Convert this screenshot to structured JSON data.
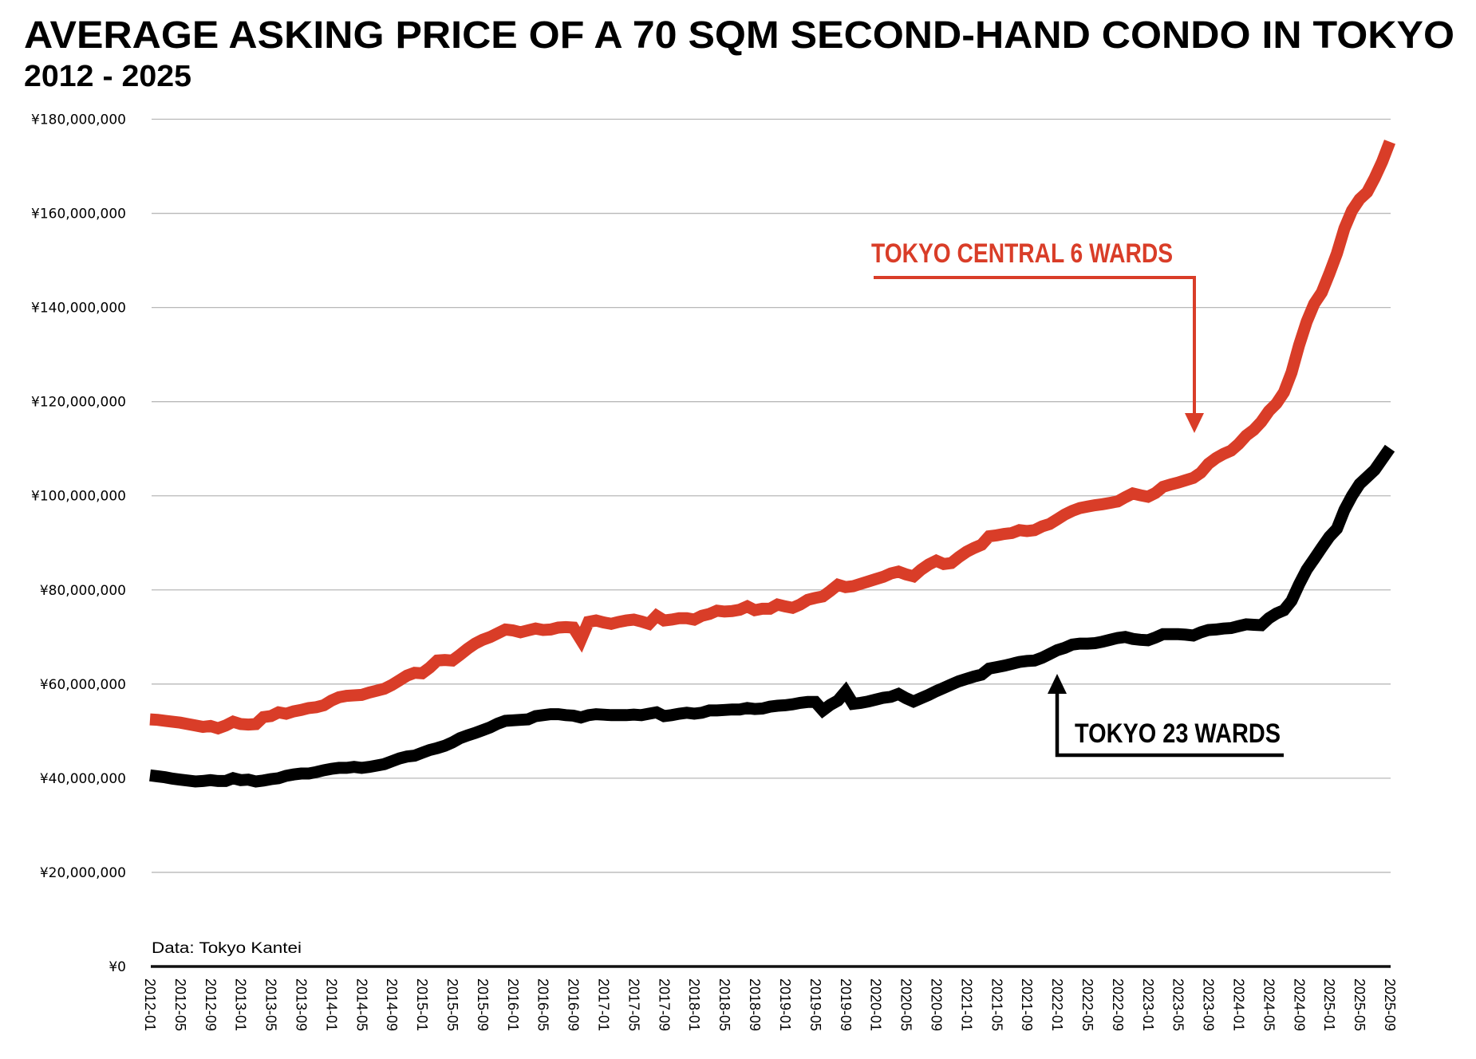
{
  "chart_data": {
    "type": "line",
    "title": "AVERAGE ASKING PRICE OF A 70 SQM SECOND-HAND CONDO IN TOKYO",
    "subtitle": "2012 - 2025",
    "source": "Data: Tokyo Kantei",
    "xlabel": "",
    "ylabel": "",
    "x_start": "2012-01",
    "x_end": "2025-09",
    "x_frequency": "monthly",
    "x_tick_labels": [
      "2012-01",
      "2012-05",
      "2012-09",
      "2013-01",
      "2013-05",
      "2013-09",
      "2014-01",
      "2014-05",
      "2014-09",
      "2015-01",
      "2015-05",
      "2015-09",
      "2016-01",
      "2016-05",
      "2016-09",
      "2017-01",
      "2017-05",
      "2017-09",
      "2018-01",
      "2018-05",
      "2018-09",
      "2019-01",
      "2019-05",
      "2019-09",
      "2020-01",
      "2020-05",
      "2020-09",
      "2021-01",
      "2021-05",
      "2021-09",
      "2022-01",
      "2022-05",
      "2022-09",
      "2023-01",
      "2023-05",
      "2023-09",
      "2024-01",
      "2024-05",
      "2024-09",
      "2025-01",
      "2025-05",
      "2025-09"
    ],
    "ylim": [
      0,
      180000000
    ],
    "y_tick_values": [
      0,
      20000000,
      40000000,
      60000000,
      80000000,
      100000000,
      120000000,
      140000000,
      160000000,
      180000000
    ],
    "y_tick_labels": [
      "¥0",
      "¥20,000,000",
      "¥40,000,000",
      "¥60,000,000",
      "¥80,000,000",
      "¥100,000,000",
      "¥120,000,000",
      "¥140,000,000",
      "¥160,000,000",
      "¥180,000,000"
    ],
    "grid": true,
    "legend": "none (direct line annotations)",
    "value_unit": "million yen",
    "series": [
      {
        "name": "TOKYO CENTRAL 6 WARDS",
        "color": "#D93D28",
        "values": [
          52.5,
          52.4,
          52.2,
          52.0,
          51.8,
          51.5,
          51.2,
          50.9,
          51.1,
          50.6,
          51.2,
          52.0,
          51.5,
          51.4,
          51.5,
          53.0,
          53.2,
          54.0,
          53.7,
          54.2,
          54.5,
          54.9,
          55.1,
          55.5,
          56.5,
          57.2,
          57.5,
          57.6,
          57.7,
          58.2,
          58.6,
          59.0,
          59.8,
          60.8,
          61.8,
          62.4,
          62.3,
          63.5,
          65.0,
          65.1,
          65.0,
          66.2,
          67.5,
          68.6,
          69.4,
          70.0,
          70.8,
          71.6,
          71.4,
          71.0,
          71.4,
          71.8,
          71.5,
          71.6,
          72.0,
          72.1,
          72.0,
          69.4,
          73.2,
          73.5,
          73.1,
          72.8,
          73.2,
          73.5,
          73.7,
          73.3,
          72.8,
          74.5,
          73.5,
          73.7,
          74.0,
          74.0,
          73.7,
          74.5,
          74.9,
          75.6,
          75.4,
          75.5,
          75.8,
          76.5,
          75.7,
          76.0,
          76.0,
          76.9,
          76.5,
          76.2,
          76.9,
          77.9,
          78.3,
          78.6,
          79.8,
          81.1,
          80.6,
          80.8,
          81.3,
          81.8,
          82.3,
          82.8,
          83.5,
          83.9,
          83.3,
          82.9,
          84.3,
          85.4,
          86.2,
          85.5,
          85.7,
          87.0,
          88.1,
          88.9,
          89.6,
          91.4,
          91.6,
          91.9,
          92.1,
          92.7,
          92.5,
          92.7,
          93.5,
          94.0,
          95.0,
          96.0,
          96.8,
          97.4,
          97.7,
          98.0,
          98.2,
          98.5,
          98.8,
          99.7,
          100.5,
          100.1,
          99.8,
          100.6,
          101.9,
          102.4,
          102.8,
          103.3,
          103.8,
          104.9,
          106.8,
          108.0,
          108.9,
          109.6,
          111.0,
          112.8,
          114.0,
          115.7,
          118.0,
          119.6,
          122.0,
          126.2,
          132.0,
          137.0,
          140.8,
          143.2,
          147.2,
          151.5,
          156.8,
          160.6,
          163.0,
          164.5,
          167.5,
          171.0,
          175.2
        ]
      },
      {
        "name": "TOKYO 23 WARDS",
        "color": "#000000",
        "values": [
          40.6,
          40.4,
          40.2,
          39.9,
          39.7,
          39.5,
          39.3,
          39.4,
          39.6,
          39.4,
          39.4,
          40.0,
          39.6,
          39.7,
          39.3,
          39.5,
          39.8,
          40.0,
          40.5,
          40.8,
          41.0,
          41.0,
          41.3,
          41.7,
          42.0,
          42.2,
          42.2,
          42.4,
          42.2,
          42.4,
          42.7,
          43.0,
          43.6,
          44.2,
          44.6,
          44.8,
          45.4,
          46.0,
          46.4,
          46.9,
          47.6,
          48.5,
          49.1,
          49.6,
          50.2,
          50.8,
          51.6,
          52.2,
          52.3,
          52.4,
          52.5,
          53.2,
          53.4,
          53.6,
          53.6,
          53.4,
          53.3,
          52.9,
          53.4,
          53.6,
          53.5,
          53.4,
          53.4,
          53.4,
          53.5,
          53.4,
          53.7,
          54.0,
          53.2,
          53.4,
          53.7,
          53.9,
          53.7,
          53.9,
          54.4,
          54.4,
          54.5,
          54.6,
          54.6,
          54.9,
          54.7,
          54.8,
          55.2,
          55.4,
          55.5,
          55.7,
          56.0,
          56.2,
          56.2,
          54.4,
          55.6,
          56.5,
          58.4,
          55.8,
          56.0,
          56.3,
          56.7,
          57.1,
          57.3,
          57.9,
          57.0,
          56.3,
          57.0,
          57.7,
          58.5,
          59.2,
          59.9,
          60.6,
          61.1,
          61.6,
          62.0,
          63.3,
          63.6,
          63.9,
          64.3,
          64.7,
          64.9,
          65.0,
          65.6,
          66.4,
          67.2,
          67.7,
          68.4,
          68.6,
          68.6,
          68.7,
          69.0,
          69.4,
          69.8,
          70.0,
          69.6,
          69.4,
          69.3,
          69.9,
          70.6,
          70.6,
          70.6,
          70.5,
          70.3,
          71.0,
          71.5,
          71.6,
          71.8,
          71.9,
          72.3,
          72.7,
          72.6,
          72.5,
          74.0,
          75.0,
          75.7,
          77.7,
          81.2,
          84.3,
          86.6,
          89.0,
          91.3,
          93.0,
          97.0,
          100.0,
          102.5,
          104.0,
          105.5,
          107.8,
          110.1
        ]
      }
    ],
    "annotations": [
      {
        "text": "TOKYO CENTRAL 6 WARDS",
        "series": "TOKYO CENTRAL 6 WARDS",
        "arrow": "down",
        "color": "#D93D28"
      },
      {
        "text": "TOKYO 23 WARDS",
        "series": "TOKYO 23 WARDS",
        "arrow": "up",
        "color": "#000000"
      }
    ]
  }
}
